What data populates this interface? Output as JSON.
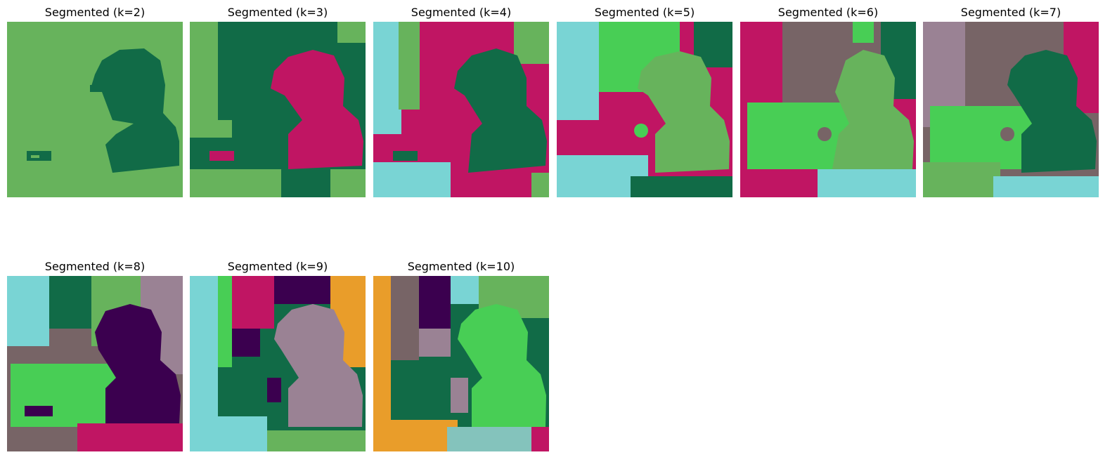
{
  "figure": {
    "panels": [
      {
        "title": "Segmented (k=2)",
        "k": 2,
        "colors": [
          "#67b35c",
          "#116b47"
        ]
      },
      {
        "title": "Segmented (k=3)",
        "k": 3,
        "colors": [
          "#67b35c",
          "#116b47",
          "#c01563"
        ]
      },
      {
        "title": "Segmented (k=4)",
        "k": 4,
        "colors": [
          "#79d4d4",
          "#67b35c",
          "#c01563",
          "#116b47"
        ]
      },
      {
        "title": "Segmented (k=5)",
        "k": 5,
        "colors": [
          "#79d4d4",
          "#48ce55",
          "#c01563",
          "#67b35c",
          "#116b47"
        ]
      },
      {
        "title": "Segmented (k=6)",
        "k": 6,
        "colors": [
          "#c01563",
          "#776466",
          "#48ce55",
          "#116b47",
          "#67b35c",
          "#79d4d4"
        ]
      },
      {
        "title": "Segmented (k=7)",
        "k": 7,
        "colors": [
          "#9a8294",
          "#776466",
          "#c01563",
          "#116b47",
          "#48ce55",
          "#67b35c",
          "#79d4d4"
        ]
      },
      {
        "title": "Segmented (k=8)",
        "k": 8,
        "colors": [
          "#776466",
          "#79d4d4",
          "#116b47",
          "#67b35c",
          "#9a8294",
          "#3b004f",
          "#48ce55",
          "#c01563"
        ]
      },
      {
        "title": "Segmented (k=9)",
        "k": 9,
        "colors": [
          "#79d4d4",
          "#48ce55",
          "#e99d2a",
          "#c01563",
          "#3b004f",
          "#9a8294",
          "#116b47",
          "#67b35c",
          "#ffffff"
        ]
      },
      {
        "title": "Segmented (k=10)",
        "k": 10,
        "colors": [
          "#e99d2a",
          "#776466",
          "#3b004f",
          "#79d4d4",
          "#67b35c",
          "#48ce55",
          "#116b47",
          "#9a8294",
          "#84c3bc",
          "#c01563"
        ]
      }
    ]
  }
}
